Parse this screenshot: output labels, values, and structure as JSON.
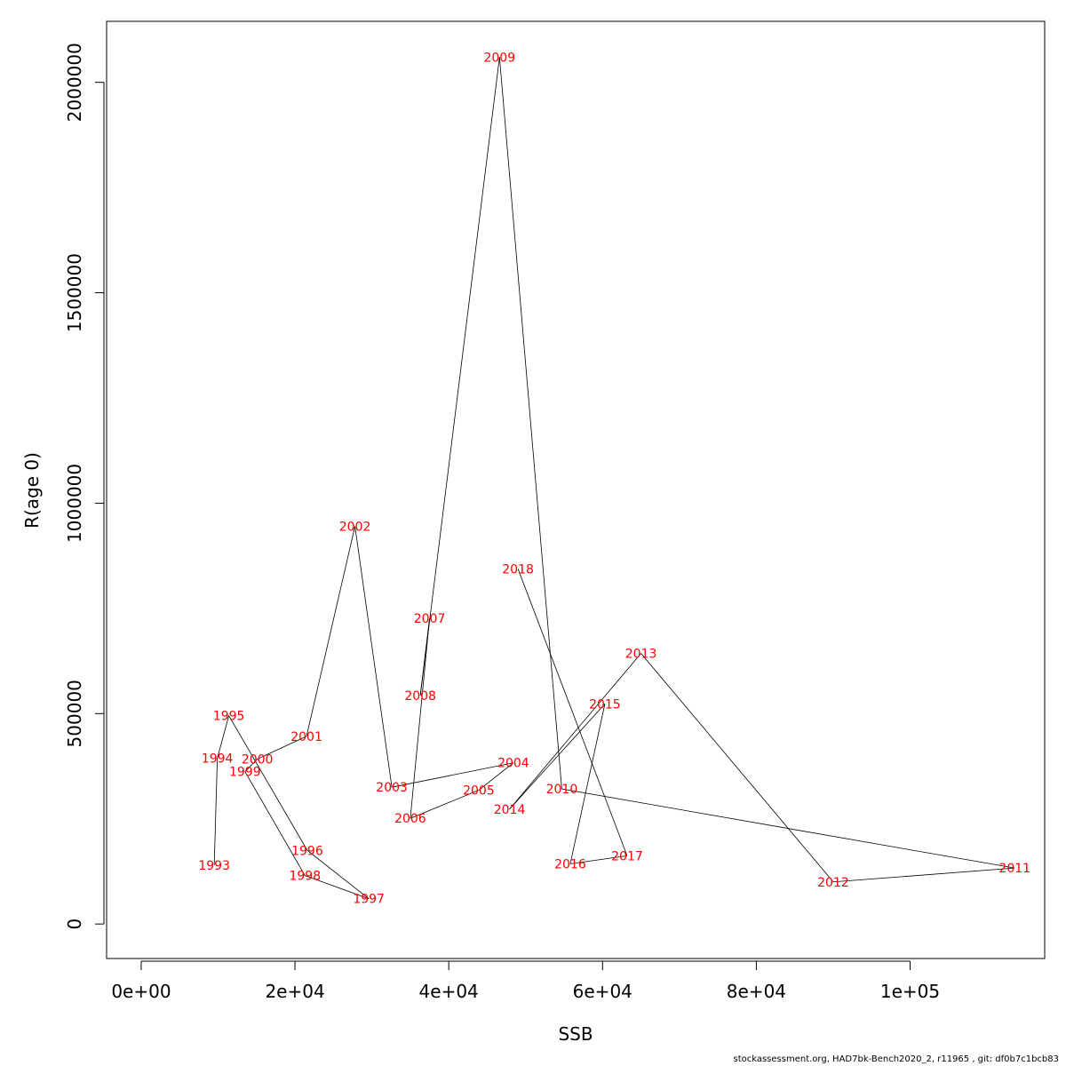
{
  "chart_data": {
    "type": "line",
    "title": "",
    "xlabel": "SSB",
    "ylabel": "R(age 0)",
    "xlim": [
      -4500,
      117500
    ],
    "ylim": [
      -82000,
      2145000
    ],
    "x_ticks": [
      {
        "value": 0,
        "label": "0e+00"
      },
      {
        "value": 20000,
        "label": "2e+04"
      },
      {
        "value": 40000,
        "label": "4e+04"
      },
      {
        "value": 60000,
        "label": "6e+04"
      },
      {
        "value": 80000,
        "label": "8e+04"
      },
      {
        "value": 100000,
        "label": "1e+05"
      }
    ],
    "y_ticks": [
      {
        "value": 0,
        "label": "0"
      },
      {
        "value": 500000,
        "label": "500000"
      },
      {
        "value": 1000000,
        "label": "1000000"
      },
      {
        "value": 1500000,
        "label": "1500000"
      },
      {
        "value": 2000000,
        "label": "2000000"
      }
    ],
    "grid": false,
    "line_color": "#000000",
    "label_color": "#ff0000",
    "points": [
      {
        "year": "1993",
        "ssb": 9500,
        "r": 140000
      },
      {
        "year": "1994",
        "ssb": 9900,
        "r": 394000
      },
      {
        "year": "1995",
        "ssb": 11400,
        "r": 495000
      },
      {
        "year": "1996",
        "ssb": 21600,
        "r": 175000
      },
      {
        "year": "1997",
        "ssb": 29600,
        "r": 60000
      },
      {
        "year": "1998",
        "ssb": 21300,
        "r": 115000
      },
      {
        "year": "1999",
        "ssb": 13500,
        "r": 362000
      },
      {
        "year": "2000",
        "ssb": 15100,
        "r": 392000
      },
      {
        "year": "2001",
        "ssb": 21500,
        "r": 446000
      },
      {
        "year": "2002",
        "ssb": 27800,
        "r": 945000
      },
      {
        "year": "2003",
        "ssb": 32600,
        "r": 325000
      },
      {
        "year": "2004",
        "ssb": 48400,
        "r": 383000
      },
      {
        "year": "2005",
        "ssb": 43900,
        "r": 318000
      },
      {
        "year": "2006",
        "ssb": 35000,
        "r": 251000
      },
      {
        "year": "2007",
        "ssb": 37500,
        "r": 726000
      },
      {
        "year": "2008",
        "ssb": 36300,
        "r": 543000
      },
      {
        "year": "2009",
        "ssb": 46600,
        "r": 2060000
      },
      {
        "year": "2010",
        "ssb": 54700,
        "r": 321000
      },
      {
        "year": "2011",
        "ssb": 113600,
        "r": 133000
      },
      {
        "year": "2012",
        "ssb": 90000,
        "r": 100000
      },
      {
        "year": "2013",
        "ssb": 65000,
        "r": 643000
      },
      {
        "year": "2014",
        "ssb": 47900,
        "r": 273000
      },
      {
        "year": "2015",
        "ssb": 60300,
        "r": 523000
      },
      {
        "year": "2016",
        "ssb": 55800,
        "r": 143000
      },
      {
        "year": "2017",
        "ssb": 63200,
        "r": 162000
      },
      {
        "year": "2018",
        "ssb": 49000,
        "r": 844000
      }
    ]
  },
  "footer": "stockassessment.org, HAD7bk-Bench2020_2, r11965 , git: df0b7c1bcb83"
}
